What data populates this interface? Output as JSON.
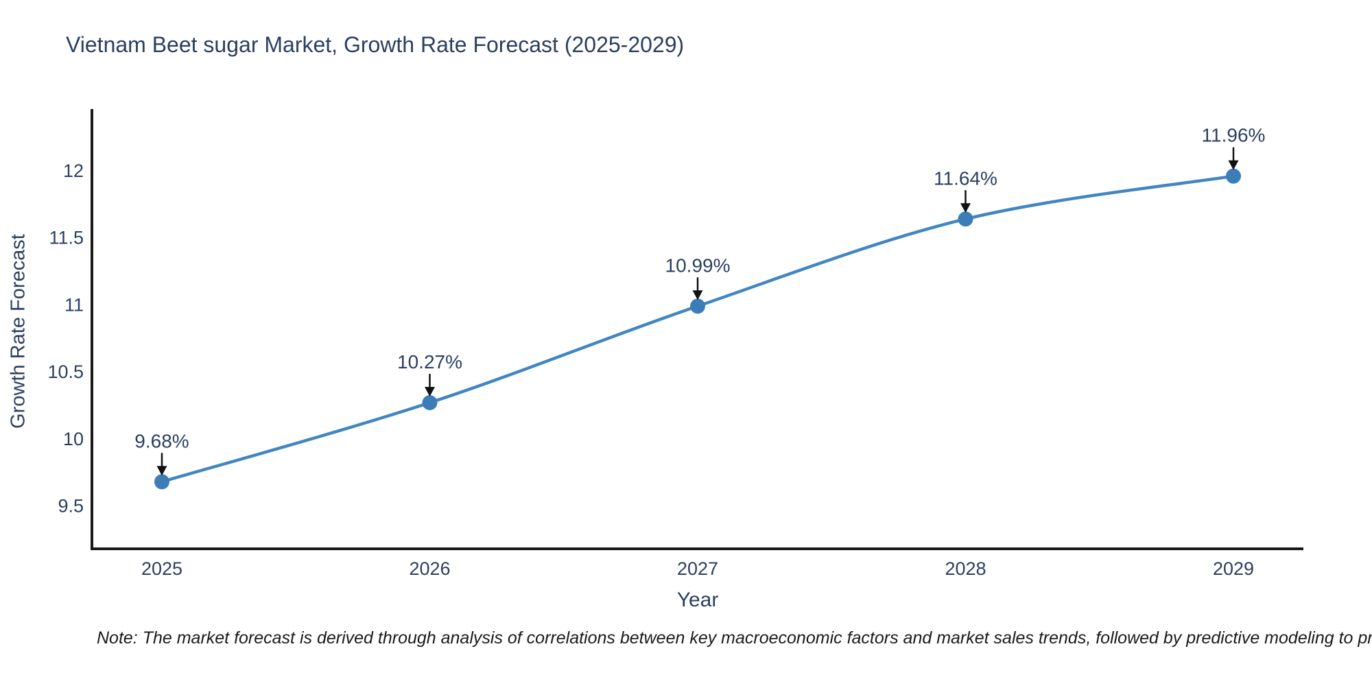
{
  "chart_data": {
    "type": "line",
    "title": "Vietnam Beet sugar Market, Growth Rate Forecast (2025-2029)",
    "xlabel": "Year",
    "ylabel": "Growth Rate Forecast",
    "categories": [
      "2025",
      "2026",
      "2027",
      "2028",
      "2029"
    ],
    "series": [
      {
        "name": "Growth Rate Forecast",
        "values": [
          9.68,
          10.27,
          10.99,
          11.64,
          11.96
        ],
        "point_labels": [
          "9.68%",
          "10.27%",
          "10.99%",
          "11.64%",
          "11.96%"
        ]
      }
    ],
    "yticks": [
      9.5,
      10,
      10.5,
      11,
      11.5,
      12
    ],
    "ylim": [
      9.18,
      12.46
    ],
    "grid": false,
    "legend_position": "none",
    "line_shape": "spline",
    "colors": {
      "line": "#4186c2",
      "marker": "#3c7db8",
      "axis": "#1a1a1a",
      "text": "#2a3f5f",
      "arrow": "#111111"
    },
    "note": "Note: The market forecast is derived through analysis of correlations between key macroeconomic factors and market sales trends, followed by predictive modeling to project future sal"
  }
}
